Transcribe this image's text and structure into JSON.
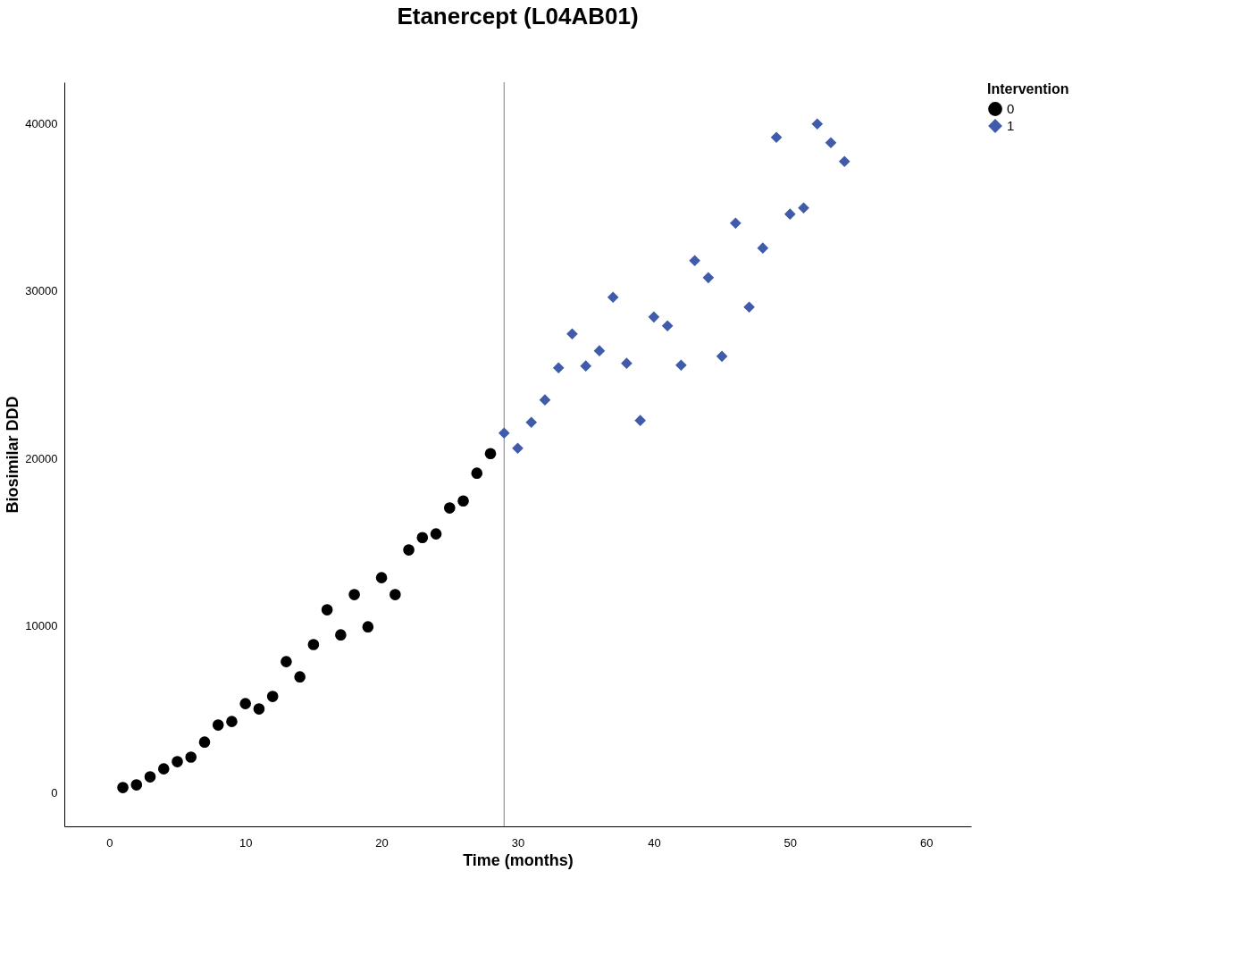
{
  "chart_data": {
    "type": "scatter",
    "title": "Etanercept (L04AB01)",
    "xlabel": "Time (months)",
    "ylabel": "Biosimilar DDD",
    "legend_title": "Intervention",
    "legend": "top right",
    "grid": false,
    "xlim": [
      -3.3,
      63.3
    ],
    "xticks": [
      0,
      10,
      20,
      30,
      40,
      50,
      60
    ],
    "ylim": [
      -2000,
      42500
    ],
    "yticks": [
      0,
      10000,
      20000,
      30000,
      40000
    ],
    "ref_lines": [
      {
        "axis": "x",
        "value": 29,
        "color": "#808080"
      }
    ],
    "series": [
      {
        "name": "0",
        "color": "#000000",
        "marker": "circle",
        "x": [
          1,
          2,
          3,
          4,
          5,
          6,
          7,
          8,
          9,
          10,
          11,
          12,
          13,
          14,
          15,
          16,
          17,
          18,
          19,
          20,
          21,
          22,
          23,
          24,
          25,
          26,
          27,
          28
        ],
        "values": [
          320,
          480,
          960,
          1440,
          1870,
          2140,
          3040,
          4060,
          4270,
          5340,
          5020,
          5770,
          7850,
          6940,
          8870,
          10950,
          9450,
          11860,
          9930,
          12870,
          11860,
          14530,
          15270,
          15490,
          17040,
          17460,
          19120,
          20290
        ]
      },
      {
        "name": "1",
        "color": "#3f5ba9",
        "marker": "diamond",
        "x": [
          29,
          30,
          31,
          32,
          33,
          34,
          35,
          36,
          37,
          38,
          39,
          40,
          41,
          42,
          43,
          44,
          45,
          46,
          47,
          48,
          49,
          50,
          51,
          52,
          53,
          54
        ],
        "values": [
          21520,
          20610,
          22160,
          23500,
          25420,
          27450,
          25530,
          26440,
          29640,
          25690,
          22270,
          28460,
          27930,
          25580,
          31830,
          30810,
          26110,
          34070,
          29050,
          32580,
          39200,
          34610,
          34980,
          40000,
          38880,
          37760
        ]
      }
    ]
  }
}
